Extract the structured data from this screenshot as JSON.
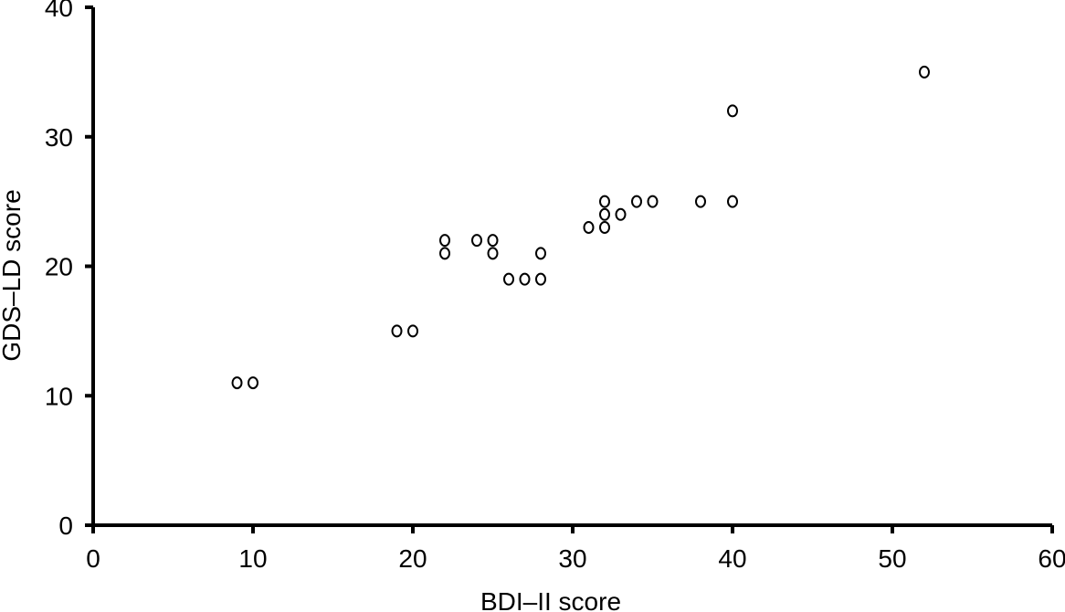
{
  "chart_data": {
    "type": "scatter",
    "xlabel": "BDI–II score",
    "ylabel": "GDS–LD score",
    "xlim": [
      0,
      60
    ],
    "ylim": [
      0,
      40
    ],
    "x_ticks": [
      0,
      10,
      20,
      30,
      40,
      50,
      60
    ],
    "y_ticks": [
      0,
      10,
      20,
      30,
      40
    ],
    "grid": false,
    "marker": "open-circle",
    "points": [
      {
        "x": 9,
        "y": 11
      },
      {
        "x": 10,
        "y": 11
      },
      {
        "x": 19,
        "y": 15
      },
      {
        "x": 20,
        "y": 15
      },
      {
        "x": 22,
        "y": 21
      },
      {
        "x": 22,
        "y": 22
      },
      {
        "x": 24,
        "y": 22
      },
      {
        "x": 25,
        "y": 21
      },
      {
        "x": 25,
        "y": 22
      },
      {
        "x": 26,
        "y": 19
      },
      {
        "x": 27,
        "y": 19
      },
      {
        "x": 28,
        "y": 19
      },
      {
        "x": 28,
        "y": 21
      },
      {
        "x": 31,
        "y": 23
      },
      {
        "x": 32,
        "y": 23
      },
      {
        "x": 32,
        "y": 24
      },
      {
        "x": 32,
        "y": 25
      },
      {
        "x": 33,
        "y": 24
      },
      {
        "x": 34,
        "y": 25
      },
      {
        "x": 35,
        "y": 25
      },
      {
        "x": 38,
        "y": 25
      },
      {
        "x": 40,
        "y": 25
      },
      {
        "x": 40,
        "y": 32
      },
      {
        "x": 52,
        "y": 35
      }
    ]
  }
}
